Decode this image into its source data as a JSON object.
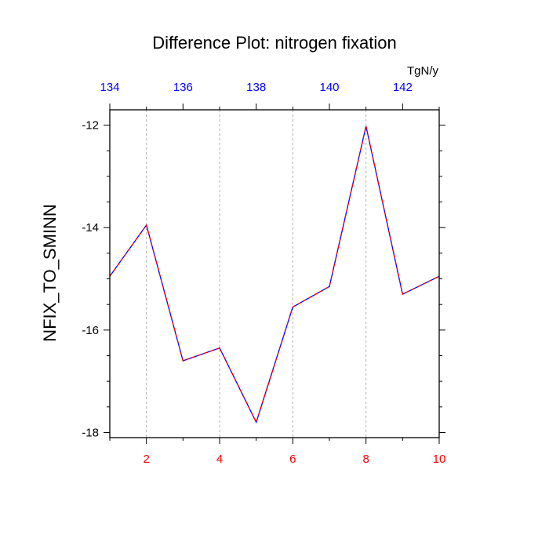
{
  "chart_data": {
    "type": "line",
    "title": "Difference Plot: nitrogen fixation",
    "ylabel": "NFIX_TO_SMINN",
    "top_units": "TgN/y",
    "xlim": [
      1,
      10
    ],
    "ylim": [
      -18.1,
      -11.7
    ],
    "x_ticks": [
      2,
      4,
      6,
      8,
      10
    ],
    "x_tick_labels": [
      "2",
      "4",
      "6",
      "8",
      "10"
    ],
    "y_ticks": [
      -12,
      -14,
      -16,
      -18
    ],
    "y_tick_labels": [
      "-12",
      "-14",
      "-16",
      "-18"
    ],
    "top_axis": {
      "xlim": [
        134,
        143
      ],
      "ticks": [
        134,
        136,
        138,
        140,
        142
      ],
      "tick_labels": [
        "134",
        "136",
        "138",
        "140",
        "142"
      ]
    },
    "grid": "vertical dashed at major x ticks",
    "series": [
      {
        "x": [
          1,
          2,
          3,
          4,
          5,
          6,
          7,
          8,
          9,
          10
        ],
        "values": [
          -14.95,
          -13.95,
          -16.6,
          -16.35,
          -17.8,
          -15.55,
          -15.15,
          -12.02,
          -15.3,
          -14.95
        ],
        "color": "#0000ff",
        "dash_color": "#ff0000"
      }
    ],
    "colors": {
      "bottom_tick_labels": "#ff0000",
      "top_tick_labels": "#0000ff",
      "line_primary": "#0000ff",
      "line_dash": "#ff0000"
    }
  }
}
